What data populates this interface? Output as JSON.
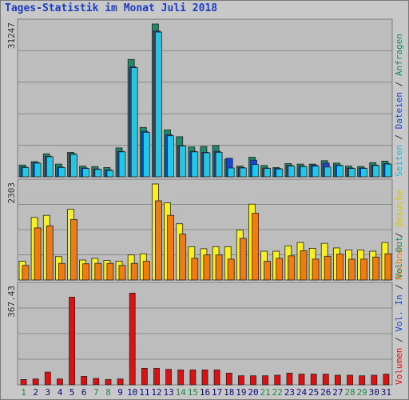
{
  "title": "Tages-Statistik im Monat Juli 2018",
  "colors": {
    "background": "#c8c8c8",
    "panel": "#bdbdbd",
    "border": "#7a7a7a",
    "grid": "#8a8a8a",
    "title": "#1a3fc4",
    "hits": "#1f8a6a",
    "files": "#1a44d0",
    "pages": "#20c8e8",
    "visits": "#f8f020",
    "sites": "#f07c10",
    "kbytes": "#e01010",
    "weekday_label": "#0a0a80",
    "weekend_label": "#1f8a4a",
    "y_label_hits": "#1f8a6a",
    "y_label_files": "#1a44d0",
    "y_label_pages": "#20b8d8",
    "y_label_visits": "#d8c800",
    "y_label_sites": "#f07c10",
    "y_label_outvol": "#1f8a6a",
    "y_label_invol": "#1a44d0",
    "y_label_volume": "#e01010"
  },
  "right_labels": {
    "top": [
      "Anfragen",
      "Dateien",
      "Seiten"
    ],
    "middle": [
      "Besuche",
      "Rechner"
    ],
    "bottom": [
      "Vol. Out",
      "Vol. In",
      "Volumen"
    ]
  },
  "chart_data": [
    {
      "type": "bar",
      "panel": "top",
      "ymax_label": "31247",
      "ymax": 31247,
      "series": [
        {
          "name": "Anfragen",
          "values": [
            2400,
            3100,
            4700,
            2600,
            5000,
            2200,
            2100,
            1900,
            5900,
            24000,
            10100,
            31247,
            9600,
            8200,
            6100,
            6200,
            6400,
            3600,
            2200,
            4000,
            2300,
            1900,
            2700,
            2600,
            2600,
            3300,
            2800,
            2200,
            2100,
            2900,
            3200
          ]
        },
        {
          "name": "Dateien",
          "values": [
            2000,
            2900,
            4200,
            2000,
            4700,
            1800,
            1600,
            1400,
            5200,
            22500,
            9300,
            29800,
            8600,
            6400,
            5200,
            5000,
            5200,
            3800,
            1900,
            3400,
            1800,
            1700,
            2300,
            2200,
            2400,
            2800,
            2400,
            1800,
            1800,
            2400,
            2700
          ]
        },
        {
          "name": "Seiten",
          "values": [
            1900,
            2800,
            4100,
            1900,
            4600,
            1700,
            1500,
            1300,
            5100,
            22300,
            9100,
            29600,
            8400,
            6300,
            5100,
            4900,
            5000,
            1800,
            1800,
            2500,
            1700,
            1600,
            2200,
            2100,
            2200,
            2000,
            2300,
            1700,
            1700,
            2300,
            2600
          ]
        }
      ]
    },
    {
      "type": "bar",
      "panel": "middle",
      "ymax_label": "2303",
      "ymax": 2303,
      "series": [
        {
          "name": "Besuche",
          "values": [
            450,
            1500,
            1550,
            560,
            1700,
            480,
            520,
            470,
            450,
            600,
            630,
            2303,
            1850,
            1350,
            800,
            750,
            800,
            800,
            1200,
            1820,
            690,
            690,
            820,
            900,
            760,
            880,
            770,
            720,
            720,
            690,
            900
          ]
        },
        {
          "name": "Rechner",
          "values": [
            350,
            1250,
            1300,
            400,
            1450,
            390,
            400,
            400,
            350,
            400,
            450,
            1900,
            1550,
            1100,
            520,
            600,
            600,
            500,
            1000,
            1600,
            450,
            520,
            580,
            700,
            500,
            570,
            620,
            500,
            500,
            550,
            630
          ]
        }
      ]
    },
    {
      "type": "bar",
      "panel": "bottom",
      "ymax_label": "367.43",
      "ymax": 367.43,
      "series": [
        {
          "name": "Volumen",
          "values": [
            20,
            22,
            48,
            22,
            330,
            32,
            24,
            20,
            22,
            345,
            62,
            62,
            58,
            56,
            56,
            56,
            56,
            44,
            34,
            34,
            34,
            36,
            44,
            40,
            40,
            40,
            36,
            36,
            34,
            36,
            40
          ]
        }
      ]
    }
  ],
  "x_labels": [
    "1",
    "2",
    "3",
    "4",
    "5",
    "6",
    "7",
    "8",
    "9",
    "10",
    "11",
    "12",
    "13",
    "14",
    "15",
    "16",
    "17",
    "18",
    "19",
    "20",
    "21",
    "22",
    "23",
    "24",
    "25",
    "26",
    "27",
    "28",
    "29",
    "30",
    "31"
  ],
  "weekend_days": [
    1,
    7,
    8,
    14,
    15,
    21,
    22,
    28,
    29
  ]
}
